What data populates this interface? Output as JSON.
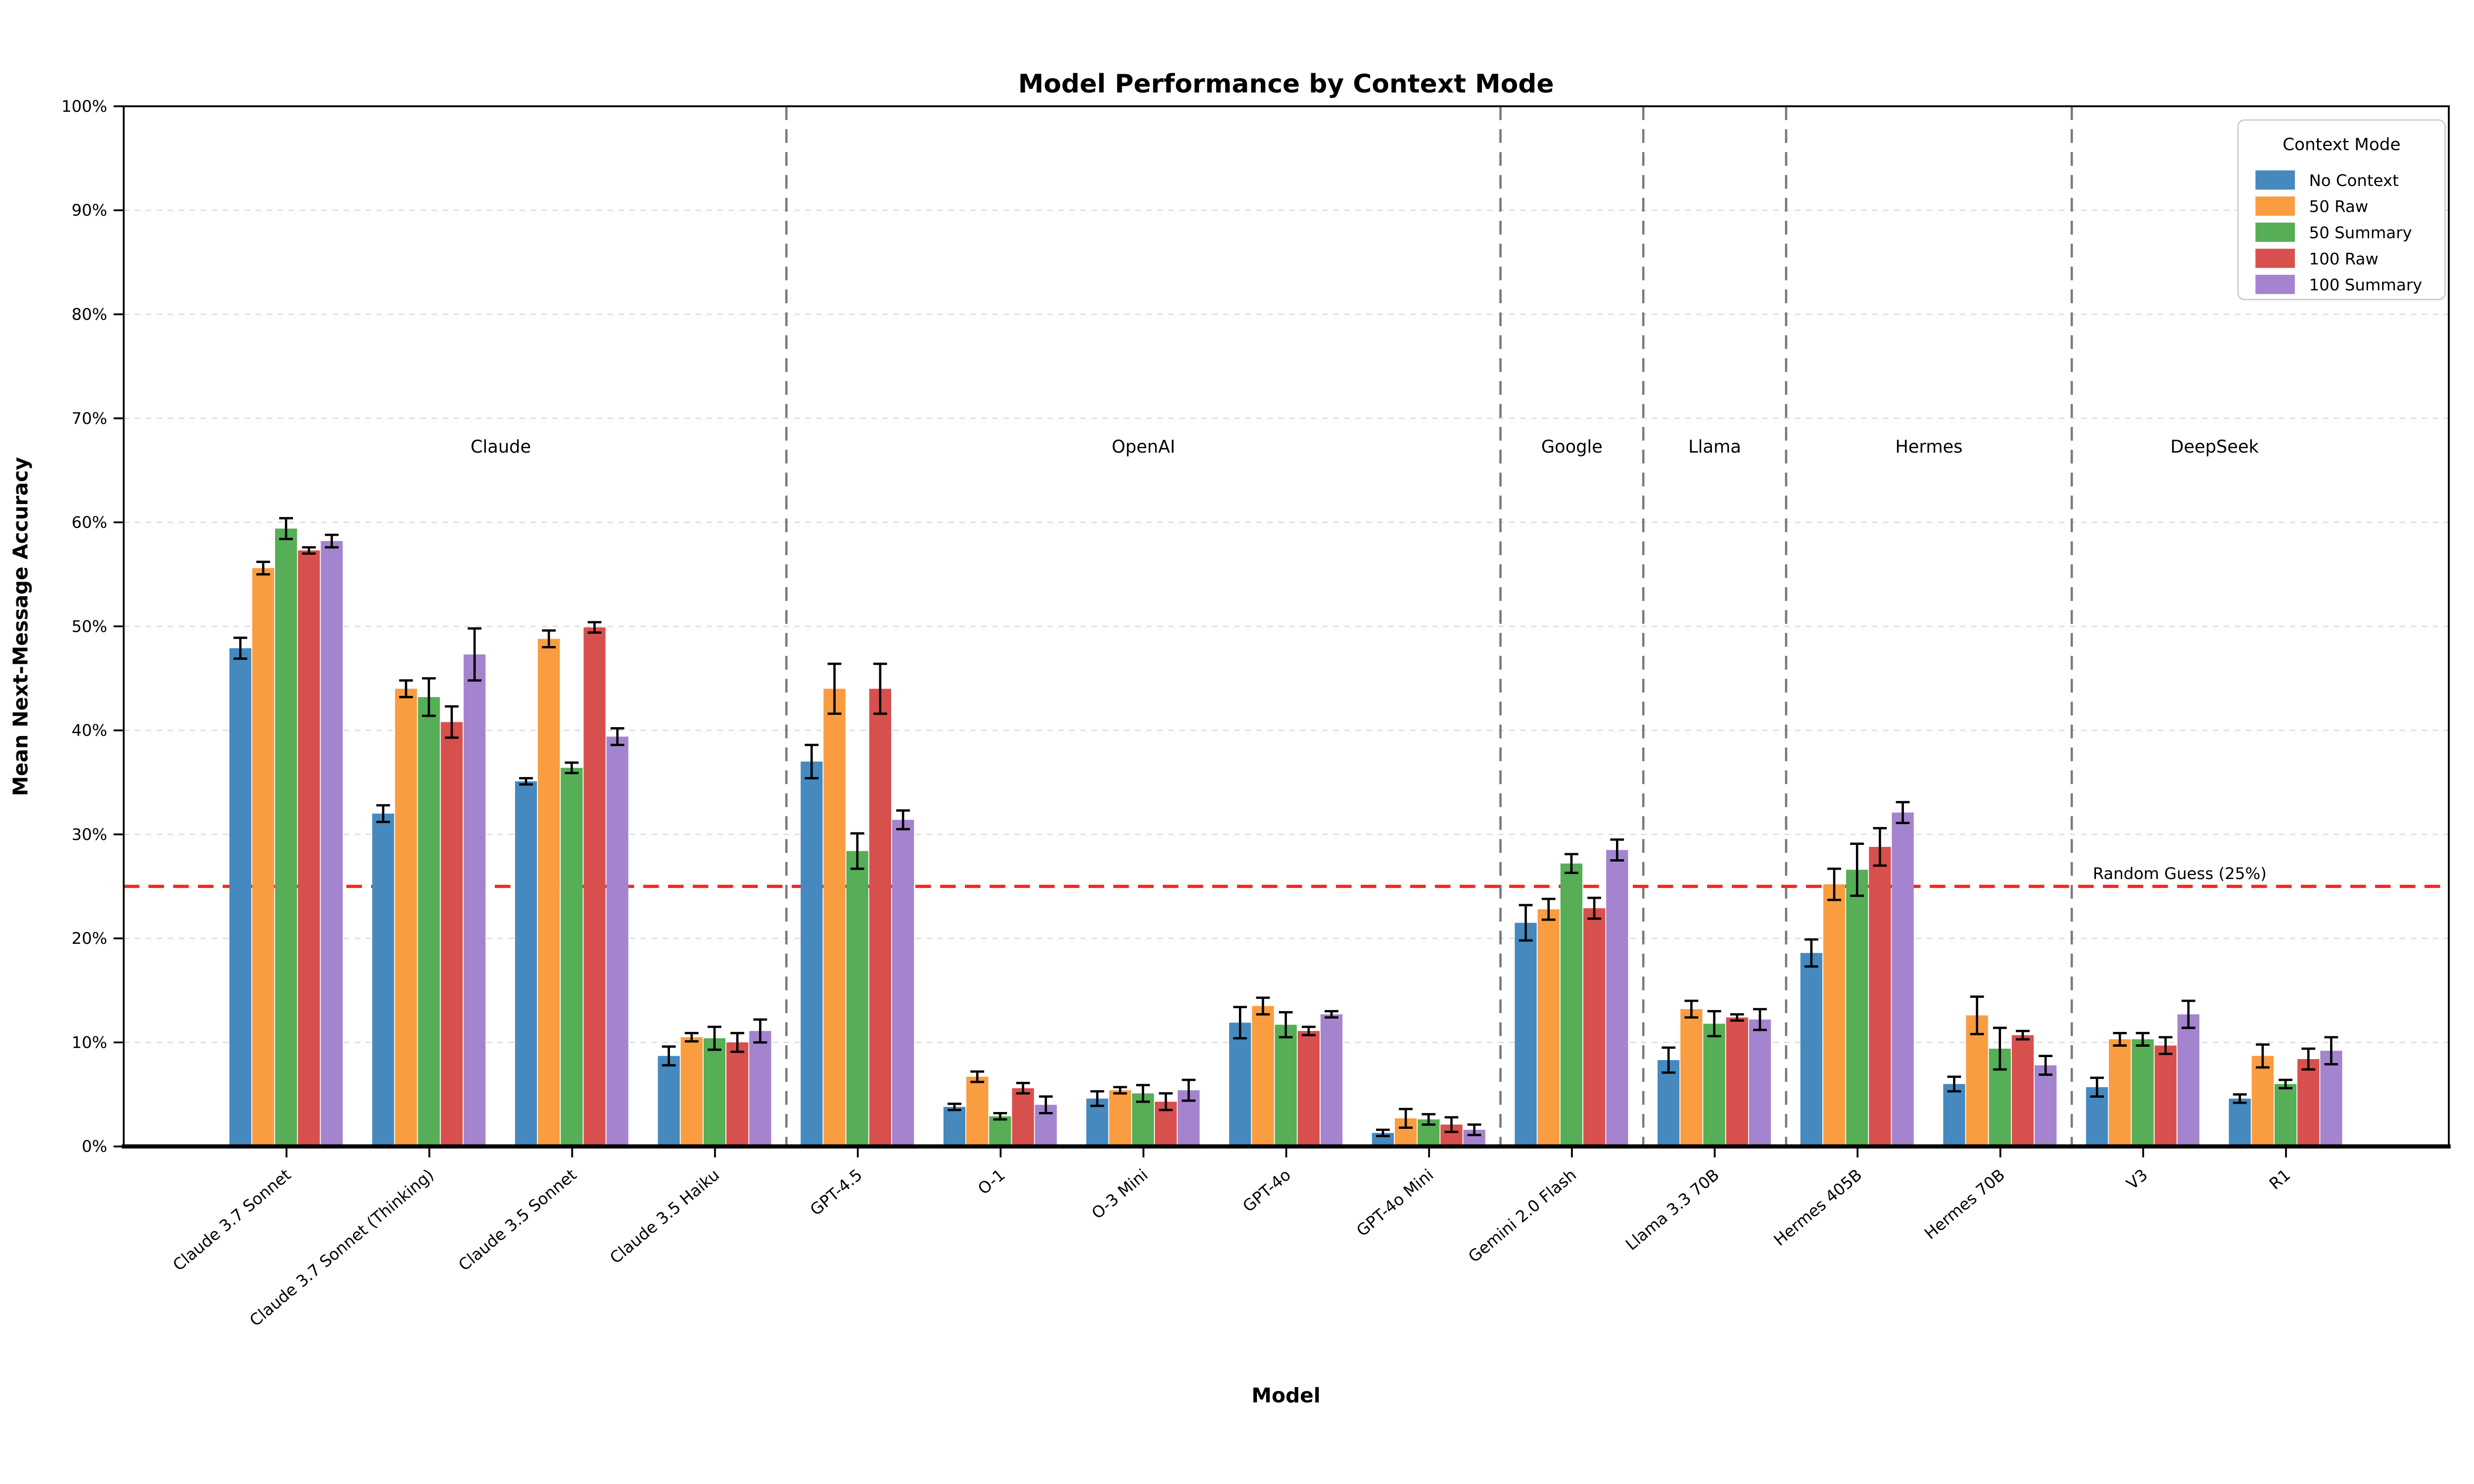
{
  "title": "Model Performance by Context Mode",
  "axes": {
    "xlabel": "Model",
    "ylabel": "Mean Next-Message Accuracy",
    "ytick_labels": [
      "0%",
      "10%",
      "20%",
      "30%",
      "40%",
      "50%",
      "60%",
      "70%",
      "80%",
      "90%",
      "100%"
    ],
    "ylim": [
      0,
      100
    ]
  },
  "legend": {
    "title": "Context Mode"
  },
  "annotations": {
    "random_guess_label": "Random Guess (25%)",
    "random_guess_value": 25,
    "line_color": "#F3291D"
  },
  "groups": [
    {
      "label": "Claude",
      "from": 0,
      "to": 3
    },
    {
      "label": "OpenAI",
      "from": 4,
      "to": 8
    },
    {
      "label": "Google",
      "from": 9,
      "to": 9
    },
    {
      "label": "Llama",
      "from": 10,
      "to": 10
    },
    {
      "label": "Hermes",
      "from": 11,
      "to": 12
    },
    {
      "label": "DeepSeek",
      "from": 13,
      "to": 14
    }
  ],
  "chart_data": {
    "type": "bar",
    "title": "Model Performance by Context Mode",
    "xlabel": "Model",
    "ylabel": "Mean Next-Message Accuracy",
    "ylim": [
      0,
      100
    ],
    "grid": true,
    "legend_position": "upper right",
    "categories": [
      "Claude 3.7 Sonnet",
      "Claude 3.7 Sonnet (Thinking)",
      "Claude 3.5 Sonnet",
      "Claude 3.5 Haiku",
      "GPT-4.5",
      "O-1",
      "O-3 Mini",
      "GPT-4o",
      "GPT-4o Mini",
      "Gemini 2.0 Flash",
      "Llama 3.3 70B",
      "Hermes 405B",
      "Hermes 70B",
      "V3",
      "R1"
    ],
    "series": [
      {
        "name": "No Context",
        "color": "#4589BF",
        "values": [
          47.9,
          32.0,
          35.1,
          8.7,
          37.0,
          3.8,
          4.6,
          11.9,
          1.3,
          21.5,
          8.3,
          18.6,
          6.0,
          5.7,
          4.6
        ],
        "errors": [
          1.0,
          0.8,
          0.3,
          0.9,
          1.6,
          0.3,
          0.7,
          1.5,
          0.3,
          1.7,
          1.2,
          1.3,
          0.7,
          0.9,
          0.4
        ]
      },
      {
        "name": "50 Raw",
        "color": "#FA9C40",
        "values": [
          55.6,
          44.0,
          48.8,
          10.5,
          44.0,
          6.7,
          5.4,
          13.5,
          2.7,
          22.8,
          13.2,
          25.2,
          12.6,
          10.3,
          8.7
        ],
        "errors": [
          0.6,
          0.8,
          0.8,
          0.4,
          2.4,
          0.5,
          0.3,
          0.8,
          0.9,
          1.0,
          0.8,
          1.5,
          1.8,
          0.6,
          1.1
        ]
      },
      {
        "name": "50 Summary",
        "color": "#56AE56",
        "values": [
          59.4,
          43.2,
          36.4,
          10.4,
          28.4,
          2.9,
          5.1,
          11.7,
          2.6,
          27.2,
          11.8,
          26.6,
          9.4,
          10.3,
          6.0
        ],
        "errors": [
          1.0,
          1.8,
          0.5,
          1.1,
          1.7,
          0.3,
          0.8,
          1.2,
          0.5,
          0.9,
          1.2,
          2.5,
          2.0,
          0.6,
          0.4
        ]
      },
      {
        "name": "100 Raw",
        "color": "#D8504D",
        "values": [
          57.3,
          40.8,
          49.9,
          10.0,
          44.0,
          5.6,
          4.3,
          11.1,
          2.1,
          22.9,
          12.4,
          28.8,
          10.7,
          9.7,
          8.4
        ],
        "errors": [
          0.3,
          1.5,
          0.5,
          0.9,
          2.4,
          0.5,
          0.8,
          0.4,
          0.7,
          1.0,
          0.3,
          1.8,
          0.4,
          0.8,
          1.0
        ]
      },
      {
        "name": "100 Summary",
        "color": "#A484CE",
        "values": [
          58.2,
          47.3,
          39.4,
          11.1,
          31.4,
          4.0,
          5.4,
          12.7,
          1.6,
          28.5,
          12.2,
          32.1,
          7.8,
          12.7,
          9.2
        ],
        "errors": [
          0.6,
          2.5,
          0.8,
          1.1,
          0.9,
          0.8,
          1.0,
          0.3,
          0.5,
          1.0,
          1.0,
          1.0,
          0.9,
          1.3,
          1.3
        ]
      }
    ]
  }
}
